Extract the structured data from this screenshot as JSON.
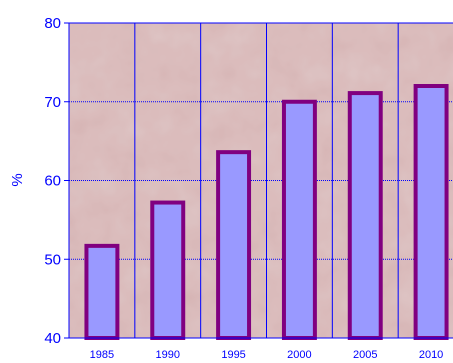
{
  "chart_data": {
    "type": "bar",
    "categories": [
      "1985",
      "1990",
      "1995",
      "2000",
      "2005",
      "2010"
    ],
    "values": [
      51.7,
      57.2,
      63.6,
      70.0,
      71.1,
      72.0
    ],
    "title": "",
    "xlabel": "",
    "ylabel": "%",
    "ylim": [
      40,
      80
    ],
    "yticks": [
      40,
      50,
      60,
      70,
      80
    ],
    "grid": true,
    "legend": "none",
    "colors": {
      "bar_fill": "#9999ff",
      "bar_stroke": "#800080",
      "plot_background": "#dcbcbc",
      "gridline": "#0000ff",
      "text": "#0000ff"
    }
  }
}
